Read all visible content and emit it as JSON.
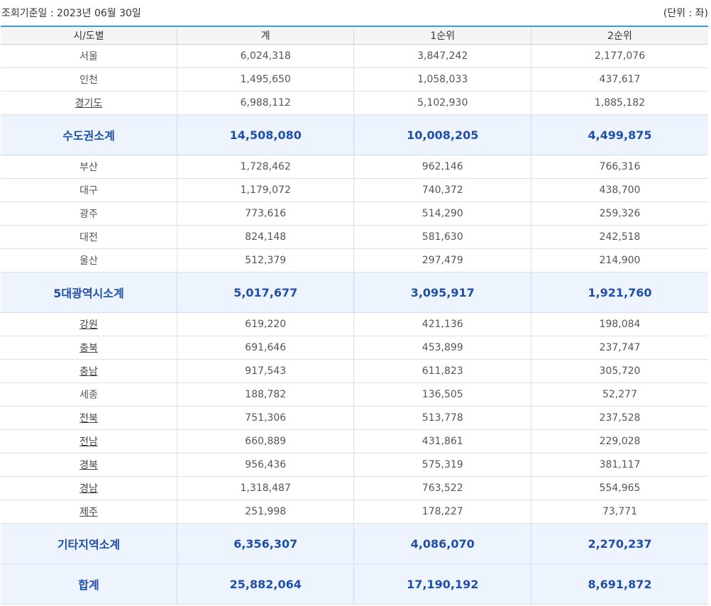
{
  "header": {
    "reference_date": "조회기준일 : 2023년 06월 30일",
    "unit": "(단위 : 좌)"
  },
  "columns": [
    "시/도별",
    "계",
    "1순위",
    "2순위"
  ],
  "rows": [
    {
      "region": "서울",
      "total": "6,024,318",
      "rank1": "3,847,242",
      "rank2": "2,177,076",
      "link": false,
      "subtotal": false
    },
    {
      "region": "인천",
      "total": "1,495,650",
      "rank1": "1,058,033",
      "rank2": "437,617",
      "link": false,
      "subtotal": false
    },
    {
      "region": "경기도",
      "total": "6,988,112",
      "rank1": "5,102,930",
      "rank2": "1,885,182",
      "link": true,
      "subtotal": false
    },
    {
      "region": "수도권소계",
      "total": "14,508,080",
      "rank1": "10,008,205",
      "rank2": "4,499,875",
      "link": false,
      "subtotal": true
    },
    {
      "region": "부산",
      "total": "1,728,462",
      "rank1": "962,146",
      "rank2": "766,316",
      "link": false,
      "subtotal": false
    },
    {
      "region": "대구",
      "total": "1,179,072",
      "rank1": "740,372",
      "rank2": "438,700",
      "link": false,
      "subtotal": false
    },
    {
      "region": "광주",
      "total": "773,616",
      "rank1": "514,290",
      "rank2": "259,326",
      "link": false,
      "subtotal": false
    },
    {
      "region": "대전",
      "total": "824,148",
      "rank1": "581,630",
      "rank2": "242,518",
      "link": false,
      "subtotal": false
    },
    {
      "region": "울산",
      "total": "512,379",
      "rank1": "297,479",
      "rank2": "214,900",
      "link": false,
      "subtotal": false
    },
    {
      "region": "5대광역시소계",
      "total": "5,017,677",
      "rank1": "3,095,917",
      "rank2": "1,921,760",
      "link": false,
      "subtotal": true
    },
    {
      "region": "강원",
      "total": "619,220",
      "rank1": "421,136",
      "rank2": "198,084",
      "link": true,
      "subtotal": false
    },
    {
      "region": "충북",
      "total": "691,646",
      "rank1": "453,899",
      "rank2": "237,747",
      "link": true,
      "subtotal": false
    },
    {
      "region": "충남",
      "total": "917,543",
      "rank1": "611,823",
      "rank2": "305,720",
      "link": true,
      "subtotal": false
    },
    {
      "region": "세종",
      "total": "188,782",
      "rank1": "136,505",
      "rank2": "52,277",
      "link": false,
      "subtotal": false
    },
    {
      "region": "전북",
      "total": "751,306",
      "rank1": "513,778",
      "rank2": "237,528",
      "link": true,
      "subtotal": false
    },
    {
      "region": "전남",
      "total": "660,889",
      "rank1": "431,861",
      "rank2": "229,028",
      "link": true,
      "subtotal": false
    },
    {
      "region": "경북",
      "total": "956,436",
      "rank1": "575,319",
      "rank2": "381,117",
      "link": true,
      "subtotal": false
    },
    {
      "region": "경남",
      "total": "1,318,487",
      "rank1": "763,522",
      "rank2": "554,965",
      "link": true,
      "subtotal": false
    },
    {
      "region": "제주",
      "total": "251,998",
      "rank1": "178,227",
      "rank2": "73,771",
      "link": true,
      "subtotal": false
    },
    {
      "region": "기타지역소계",
      "total": "6,356,307",
      "rank1": "4,086,070",
      "rank2": "2,270,237",
      "link": false,
      "subtotal": true
    },
    {
      "region": "합계",
      "total": "25,882,064",
      "rank1": "17,190,192",
      "rank2": "8,691,872",
      "link": false,
      "subtotal": true
    }
  ],
  "colors": {
    "accent_border": "#3d9ad9",
    "subtotal_bg": "#eef4fd",
    "subtotal_text": "#1f4fa8"
  }
}
